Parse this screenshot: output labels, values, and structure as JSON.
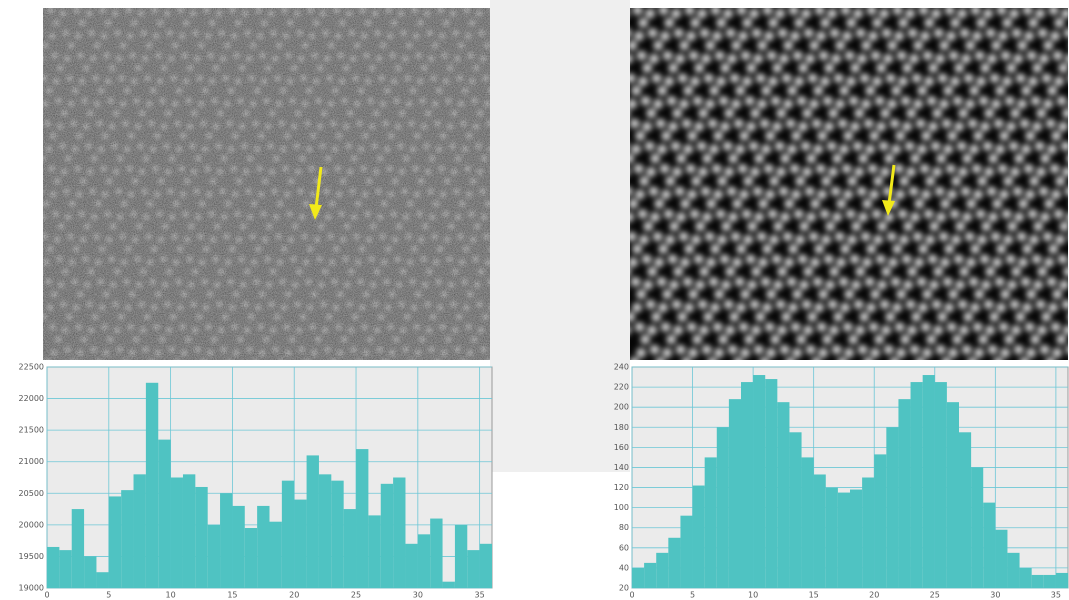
{
  "chart_data": [
    {
      "type": "histogram",
      "bins": [
        0,
        1,
        2,
        3,
        4,
        5,
        6,
        7,
        8,
        9,
        10,
        11,
        12,
        13,
        14,
        15,
        16,
        17,
        18,
        19,
        20,
        21,
        22,
        23,
        24,
        25,
        26,
        27,
        28,
        29,
        30,
        31,
        32,
        33,
        34,
        35,
        36
      ],
      "values": [
        19650,
        19600,
        20250,
        19500,
        19250,
        20450,
        20550,
        20800,
        22250,
        21350,
        20750,
        20800,
        20600,
        20000,
        20500,
        20300,
        19950,
        20300,
        20050,
        20700,
        20400,
        21100,
        20800,
        20700,
        20250,
        21200,
        20150,
        20650,
        20750,
        19700,
        19850,
        20100,
        19100,
        20000,
        19600,
        19700
      ],
      "color": "#4fc3c2",
      "xlim": [
        0,
        36
      ],
      "xticks": [
        0,
        5,
        10,
        15,
        20,
        25,
        30,
        35
      ],
      "ylim": [
        19000,
        22500
      ],
      "yticks": [
        19000,
        19500,
        20000,
        20500,
        21000,
        21500,
        22000,
        22500
      ],
      "grid": true
    },
    {
      "type": "histogram",
      "bins": [
        0,
        1,
        2,
        3,
        4,
        5,
        6,
        7,
        8,
        9,
        10,
        11,
        12,
        13,
        14,
        15,
        16,
        17,
        18,
        19,
        20,
        21,
        22,
        23,
        24,
        25,
        26,
        27,
        28,
        29,
        30,
        31,
        32,
        33,
        34,
        35,
        36
      ],
      "values": [
        40,
        45,
        55,
        70,
        92,
        122,
        150,
        180,
        208,
        225,
        232,
        228,
        205,
        175,
        150,
        133,
        120,
        115,
        118,
        130,
        153,
        180,
        208,
        225,
        232,
        225,
        205,
        175,
        140,
        105,
        78,
        55,
        40,
        33,
        33,
        35
      ],
      "color": "#4fc3c2",
      "xlim": [
        0,
        36
      ],
      "xticks": [
        0,
        5,
        10,
        15,
        20,
        25,
        30,
        35
      ],
      "ylim": [
        20,
        240
      ],
      "yticks": [
        20,
        40,
        60,
        80,
        100,
        120,
        140,
        160,
        180,
        200,
        220,
        240
      ],
      "grid": true
    }
  ]
}
